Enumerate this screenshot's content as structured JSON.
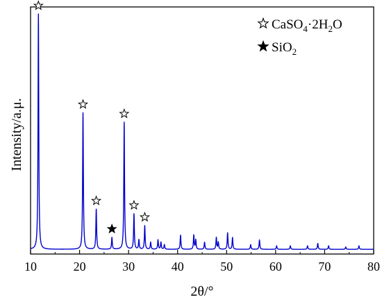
{
  "chart_data": {
    "type": "line",
    "xlabel": "2θ/°",
    "ylabel": "Intensity/a.μ.",
    "xlim": [
      10,
      80
    ],
    "x_ticks": [
      10,
      20,
      30,
      40,
      50,
      60,
      70,
      80
    ],
    "y_ticks_shown": false,
    "grid": false,
    "line_color": "#0000cc",
    "legend_position": "top-right",
    "legend": [
      {
        "symbol": "open-star",
        "label_main": "CaSO",
        "sub1": "4",
        "mid": "·2H",
        "sub2": "2",
        "tail": "O"
      },
      {
        "symbol": "filled-star",
        "label_main": "SiO",
        "sub1": "2",
        "mid": "",
        "sub2": "",
        "tail": ""
      }
    ],
    "baseline": 2,
    "series": [
      {
        "peaks": [
          {
            "x": 11.6,
            "y": 100,
            "marker": "open-star"
          },
          {
            "x": 20.7,
            "y": 58,
            "marker": "open-star"
          },
          {
            "x": 23.4,
            "y": 17,
            "marker": "open-star"
          },
          {
            "x": 26.6,
            "y": 5,
            "marker": "filled-star"
          },
          {
            "x": 29.1,
            "y": 54,
            "marker": "open-star"
          },
          {
            "x": 31.1,
            "y": 15,
            "marker": "open-star"
          },
          {
            "x": 32.1,
            "y": 4
          },
          {
            "x": 33.3,
            "y": 10,
            "marker": "open-star"
          },
          {
            "x": 34.5,
            "y": 3
          },
          {
            "x": 36.0,
            "y": 4
          },
          {
            "x": 36.6,
            "y": 3
          },
          {
            "x": 37.3,
            "y": 2
          },
          {
            "x": 40.6,
            "y": 6
          },
          {
            "x": 43.3,
            "y": 6
          },
          {
            "x": 43.7,
            "y": 4
          },
          {
            "x": 45.5,
            "y": 3
          },
          {
            "x": 47.9,
            "y": 5
          },
          {
            "x": 48.3,
            "y": 3
          },
          {
            "x": 50.2,
            "y": 7
          },
          {
            "x": 51.2,
            "y": 5
          },
          {
            "x": 54.9,
            "y": 2
          },
          {
            "x": 56.7,
            "y": 4
          },
          {
            "x": 60.2,
            "y": 1.5
          },
          {
            "x": 63.0,
            "y": 1.5
          },
          {
            "x": 66.5,
            "y": 1.5
          },
          {
            "x": 68.6,
            "y": 2.5
          },
          {
            "x": 70.8,
            "y": 1.5
          },
          {
            "x": 74.3,
            "y": 1
          },
          {
            "x": 77.0,
            "y": 1.5
          }
        ]
      }
    ]
  }
}
